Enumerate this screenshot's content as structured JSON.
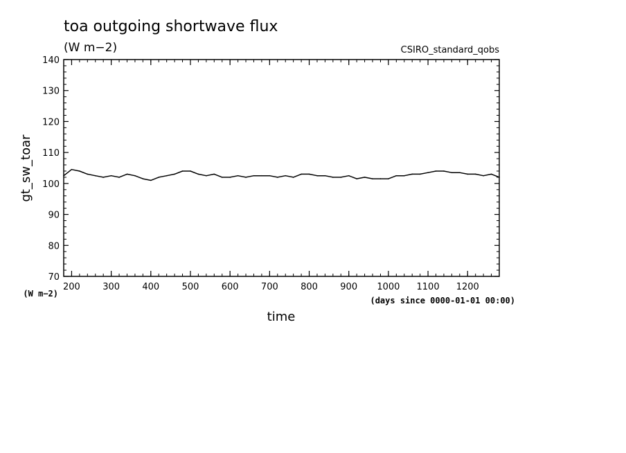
{
  "chart_data": {
    "type": "line",
    "title": "toa outgoing shortwave flux",
    "units": "(W m−2)",
    "run_label": "CSIRO_standard_qobs",
    "xlabel": "time",
    "x_units": "(days since 0000-01-01 00:00)",
    "ylabel": "gt_sw_toar",
    "y_units": "(W m−2)",
    "xlim": [
      180,
      1280
    ],
    "ylim": [
      70,
      140
    ],
    "x_ticks": [
      200,
      300,
      400,
      500,
      600,
      700,
      800,
      900,
      1000,
      1100,
      1200
    ],
    "y_ticks": [
      70,
      80,
      90,
      100,
      110,
      120,
      130,
      140
    ],
    "grid": false,
    "series": [
      {
        "color": "#000000",
        "x": [
          180,
          200,
          220,
          240,
          260,
          280,
          300,
          320,
          340,
          360,
          380,
          400,
          420,
          440,
          460,
          480,
          500,
          520,
          540,
          560,
          580,
          600,
          620,
          640,
          660,
          680,
          700,
          720,
          740,
          760,
          780,
          800,
          820,
          840,
          860,
          880,
          900,
          920,
          940,
          960,
          980,
          1000,
          1020,
          1040,
          1060,
          1080,
          1100,
          1120,
          1140,
          1160,
          1180,
          1200,
          1220,
          1240,
          1260,
          1280
        ],
        "y": [
          102.5,
          104.5,
          104,
          103,
          102.5,
          102,
          102.5,
          102,
          103,
          102.5,
          101.5,
          101,
          102,
          102.5,
          103,
          104,
          104,
          103,
          102.5,
          103,
          102,
          102,
          102.5,
          102,
          102.5,
          102.5,
          102.5,
          102,
          102.5,
          102,
          103,
          103,
          102.5,
          102.5,
          102,
          102,
          102.5,
          101.5,
          102,
          101.5,
          101.5,
          101.5,
          102.5,
          102.5,
          103,
          103,
          103.5,
          104,
          104,
          103.5,
          103.5,
          103,
          103,
          102.5,
          103,
          102
        ]
      }
    ]
  }
}
